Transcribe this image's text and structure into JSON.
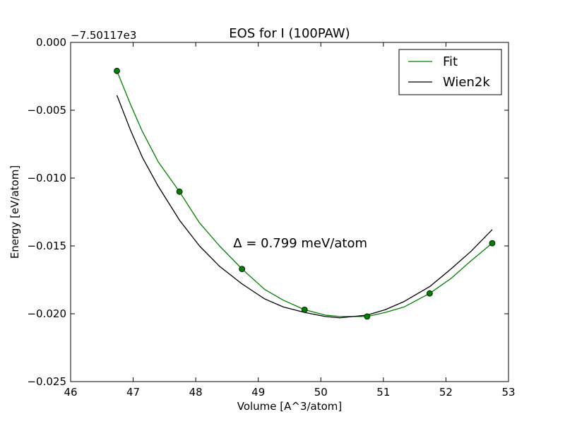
{
  "chart_data": {
    "type": "line",
    "title": "EOS for I (100PAW)",
    "xlabel": "Volume [A^3/atom]",
    "ylabel": "Energy [eV/atom]",
    "y_offset_label": "−7.50117e3",
    "xlim": [
      46,
      53
    ],
    "ylim": [
      -0.025,
      0.0
    ],
    "x_ticks": [
      46,
      47,
      48,
      49,
      50,
      51,
      52,
      53
    ],
    "x_tick_labels": [
      "46",
      "47",
      "48",
      "49",
      "50",
      "51",
      "52",
      "53"
    ],
    "y_ticks": [
      0.0,
      -0.005,
      -0.01,
      -0.015,
      -0.02,
      -0.025
    ],
    "y_tick_labels": [
      "0.000",
      "−0.005",
      "−0.010",
      "−0.015",
      "−0.020",
      "−0.025"
    ],
    "grid": false,
    "legend_position": "top-right",
    "annotation": {
      "text": "Δ = 0.799 meV/atom",
      "x": 48.6,
      "y": -0.0148
    },
    "points": {
      "color": "#008000",
      "x": [
        46.74,
        47.74,
        48.74,
        49.74,
        50.74,
        51.74,
        52.74
      ],
      "y": [
        -0.0021,
        -0.011,
        -0.0167,
        -0.0197,
        -0.0202,
        -0.0185,
        -0.0148
      ]
    },
    "series": [
      {
        "name": "Fit",
        "color": "#008000",
        "x": [
          46.74,
          46.96,
          47.14,
          47.4,
          47.74,
          48.06,
          48.38,
          48.74,
          49.1,
          49.4,
          49.74,
          50.07,
          50.3,
          50.52,
          50.74,
          51.03,
          51.33,
          51.74,
          52.08,
          52.4,
          52.74
        ],
        "y": [
          -0.0021,
          -0.0046,
          -0.0065,
          -0.0088,
          -0.011,
          -0.0133,
          -0.015,
          -0.0167,
          -0.0182,
          -0.019,
          -0.0197,
          -0.0201,
          -0.0202,
          -0.0202,
          -0.0202,
          -0.0199,
          -0.0195,
          -0.0185,
          -0.0174,
          -0.0161,
          -0.0148
        ]
      },
      {
        "name": "Wien2k",
        "color": "#000000",
        "x": [
          46.74,
          46.96,
          47.15,
          47.4,
          47.74,
          48.06,
          48.38,
          48.74,
          49.1,
          49.4,
          49.74,
          50.07,
          50.3,
          50.52,
          50.74,
          51.03,
          51.33,
          51.74,
          52.08,
          52.4,
          52.74
        ],
        "y": [
          -0.0039,
          -0.0065,
          -0.0085,
          -0.0106,
          -0.0131,
          -0.015,
          -0.0165,
          -0.0178,
          -0.0189,
          -0.0195,
          -0.0199,
          -0.0202,
          -0.0203,
          -0.0202,
          -0.0201,
          -0.0197,
          -0.0191,
          -0.018,
          -0.0167,
          -0.0154,
          -0.0138
        ]
      }
    ]
  }
}
